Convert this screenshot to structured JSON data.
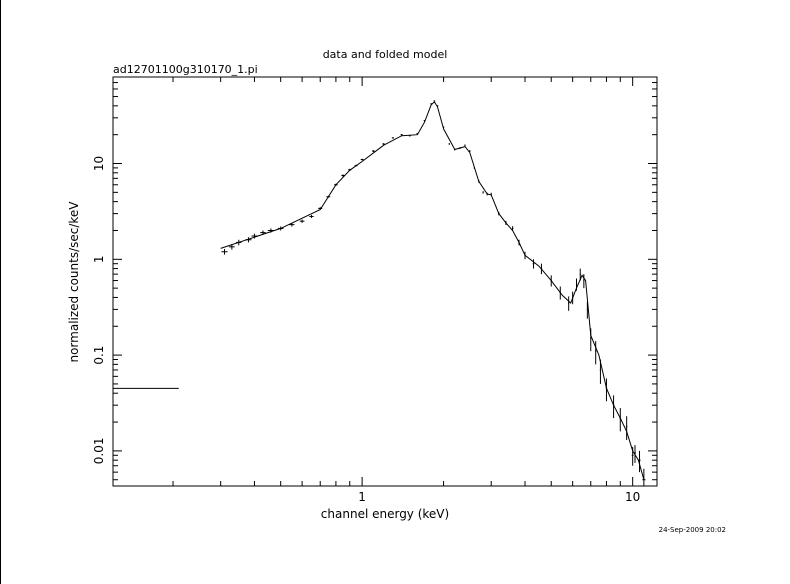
{
  "chart_data": {
    "type": "scatter",
    "title": "data and folded model",
    "subtitle": "ad12701100g310170_1.pi",
    "xlabel": "channel energy (keV)",
    "ylabel": "normalized counts/sec/keV",
    "timestamp": "24-Sep-2009 20:02",
    "x_scale": "log",
    "y_scale": "log",
    "xlim": [
      0.12,
      12.3
    ],
    "ylim": [
      0.0043,
      80
    ],
    "grid": false,
    "x_ticks": [
      {
        "value": 1,
        "label": "1"
      },
      {
        "value": 10,
        "label": "10"
      }
    ],
    "y_ticks": [
      {
        "value": 0.01,
        "label": "0.01"
      },
      {
        "value": 0.1,
        "label": "0.1"
      },
      {
        "value": 1,
        "label": "1"
      },
      {
        "value": 10,
        "label": "10"
      }
    ],
    "series": [
      {
        "marker": "cross-with-errorbars",
        "x": [
          0.12,
          0.31,
          0.33,
          0.35,
          0.38,
          0.4,
          0.43,
          0.46,
          0.5,
          0.55,
          0.6,
          0.65,
          0.7,
          0.75,
          0.8,
          0.85,
          0.9,
          0.95,
          1.0,
          1.1,
          1.2,
          1.3,
          1.4,
          1.5,
          1.6,
          1.7,
          1.8,
          1.85,
          1.9,
          2.0,
          2.1,
          2.2,
          2.3,
          2.4,
          2.5,
          2.6,
          2.7,
          2.8,
          2.9,
          3.0,
          3.2,
          3.4,
          3.6,
          3.8,
          4.0,
          4.3,
          4.6,
          5.0,
          5.4,
          5.8,
          6.0,
          6.2,
          6.4,
          6.6,
          6.8,
          7.0,
          7.3,
          7.6,
          8.0,
          8.5,
          9.0,
          9.5,
          10.0,
          10.2,
          10.6,
          11.0
        ],
        "y": [
          0.045,
          1.2,
          1.35,
          1.5,
          1.6,
          1.75,
          1.9,
          2.0,
          2.1,
          2.3,
          2.5,
          2.8,
          3.4,
          4.5,
          6.0,
          7.5,
          8.6,
          9.5,
          11.0,
          13.5,
          16.0,
          18.5,
          20.0,
          19.5,
          20.5,
          28.0,
          42.0,
          45.0,
          40.0,
          24.0,
          16.0,
          14.0,
          14.5,
          15.5,
          13.5,
          9.0,
          6.5,
          5.0,
          4.8,
          4.8,
          3.0,
          2.4,
          2.1,
          1.5,
          1.1,
          0.9,
          0.8,
          0.6,
          0.45,
          0.35,
          0.4,
          0.55,
          0.7,
          0.6,
          0.3,
          0.15,
          0.11,
          0.07,
          0.045,
          0.03,
          0.022,
          0.018,
          0.009,
          0.0095,
          0.008,
          0.005
        ],
        "x_err": [
          0.09,
          0.008,
          0.008,
          0.008,
          0.01,
          0.01,
          0.01,
          0.012,
          0.012,
          0.012,
          0.012,
          0.012,
          0.012,
          0.012,
          0.012,
          0.012,
          0.012,
          0.012,
          0.012,
          0.012,
          0.012,
          0.012,
          0.012,
          0.012,
          0.012,
          0.012,
          0.012,
          0.012,
          0.012,
          0.012,
          0.012,
          0.012,
          0.012,
          0.012,
          0.012,
          0.012,
          0.012,
          0.012,
          0.012,
          0.012,
          0.02,
          0.02,
          0.02,
          0.02,
          0.02,
          0.03,
          0.03,
          0.03,
          0.03,
          0.03,
          0.03,
          0.03,
          0.03,
          0.03,
          0.03,
          0.03,
          0.04,
          0.04,
          0.05,
          0.05,
          0.06,
          0.06,
          0.08,
          0.08,
          0.1,
          0.15
        ],
        "y_err": [
          0.003,
          0.08,
          0.09,
          0.1,
          0.1,
          0.1,
          0.1,
          0.1,
          0.1,
          0.1,
          0.1,
          0.1,
          0.1,
          0.1,
          0.15,
          0.2,
          0.2,
          0.2,
          0.2,
          0.3,
          0.3,
          0.3,
          0.3,
          0.3,
          0.3,
          0.4,
          0.5,
          0.5,
          0.5,
          0.4,
          0.3,
          0.3,
          0.3,
          0.3,
          0.3,
          0.2,
          0.2,
          0.15,
          0.15,
          0.15,
          0.12,
          0.12,
          0.12,
          0.1,
          0.1,
          0.1,
          0.1,
          0.08,
          0.07,
          0.06,
          0.06,
          0.08,
          0.1,
          0.1,
          0.06,
          0.04,
          0.03,
          0.02,
          0.012,
          0.008,
          0.006,
          0.005,
          0.002,
          0.002,
          0.002,
          0.0015
        ]
      },
      {
        "marker": "line",
        "x": [
          0.3,
          0.5,
          0.7,
          0.8,
          0.9,
          1.0,
          1.2,
          1.4,
          1.6,
          1.7,
          1.8,
          1.85,
          1.9,
          2.0,
          2.2,
          2.4,
          2.5,
          2.7,
          2.9,
          3.0,
          3.2,
          3.4,
          3.6,
          3.8,
          4.0,
          4.5,
          5.0,
          5.5,
          5.9,
          6.2,
          6.5,
          6.7,
          7.0,
          7.5,
          8.0,
          8.5,
          9.0,
          9.5,
          10.0,
          10.5,
          11.0
        ],
        "y": [
          1.3,
          2.1,
          3.3,
          6.0,
          8.5,
          10.5,
          15.5,
          19.5,
          20.0,
          27.0,
          41.0,
          44.0,
          39.0,
          23.0,
          14.0,
          15.0,
          13.0,
          6.5,
          4.8,
          4.7,
          3.0,
          2.4,
          2.0,
          1.5,
          1.1,
          0.85,
          0.6,
          0.42,
          0.35,
          0.5,
          0.68,
          0.6,
          0.16,
          0.1,
          0.045,
          0.03,
          0.022,
          0.016,
          0.01,
          0.008,
          0.005
        ]
      }
    ]
  }
}
